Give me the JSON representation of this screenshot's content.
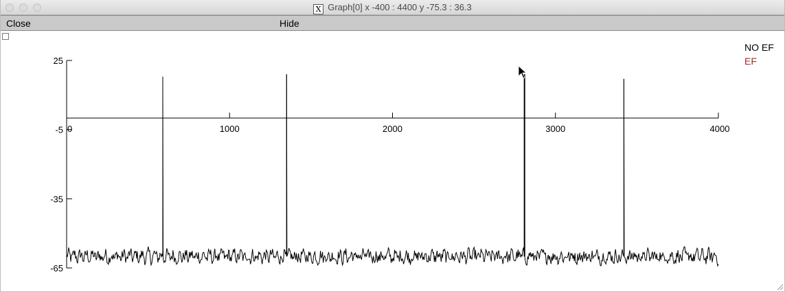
{
  "window": {
    "title": "Graph[0]  x -400 : 4400  y -75.3 : 36.3",
    "x_icon": "X"
  },
  "menu": {
    "close_label": "Close",
    "hide_label": "Hide"
  },
  "legend": [
    {
      "label": "NO EF",
      "color": "#000000"
    },
    {
      "label": "EF",
      "color": "#a52a2a"
    }
  ],
  "chart_data": {
    "type": "line",
    "title": "",
    "xlabel": "",
    "ylabel": "",
    "xlim": [
      -400,
      4400
    ],
    "ylim": [
      -75.3,
      36.3
    ],
    "x_ticks": [
      0,
      1000,
      2000,
      3000,
      4000
    ],
    "x_tick_labels": [
      "0",
      "1000",
      "2000",
      "3000",
      "4000"
    ],
    "y_ticks": [
      25,
      -5,
      -35,
      -65
    ],
    "y_tick_labels": [
      "25",
      "-5",
      "-35",
      "-65"
    ],
    "x_axis_at_y": 0,
    "grid": false,
    "legend_position": "top-right",
    "series": [
      {
        "name": "NO EF",
        "color": "#000000",
        "x_range": [
          0,
          4000
        ],
        "baseline": -60,
        "noise_amplitude": 4,
        "spikes": [
          {
            "x": 590,
            "y": 18
          },
          {
            "x": 1350,
            "y": 19
          },
          {
            "x": 2810,
            "y": 19
          },
          {
            "x": 3420,
            "y": 17
          }
        ]
      },
      {
        "name": "EF",
        "color": "#a52a2a",
        "values": []
      }
    ]
  }
}
